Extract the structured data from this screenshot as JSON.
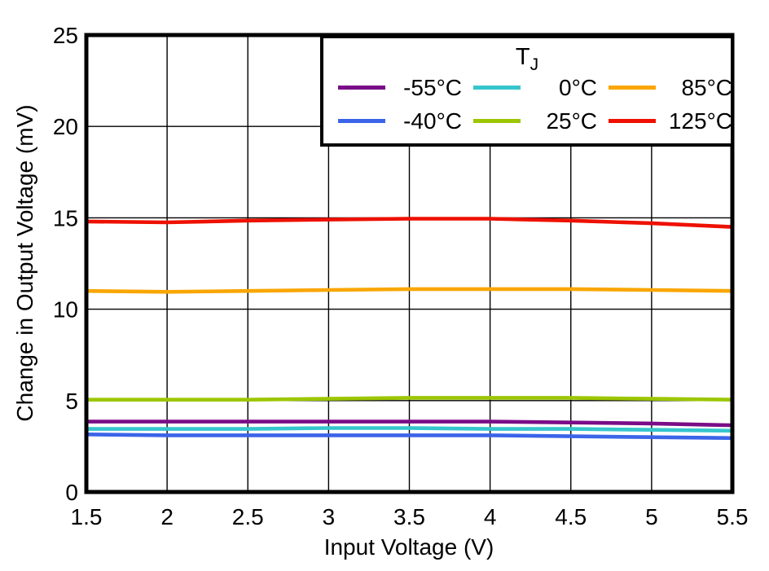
{
  "chart_data": {
    "type": "line",
    "xlabel": "Input Voltage (V)",
    "ylabel": "Change in Output Voltage (mV)",
    "xlim": [
      1.5,
      5.5
    ],
    "ylim": [
      0,
      25
    ],
    "xticks": [
      "1.5",
      "2",
      "2.5",
      "3",
      "3.5",
      "4",
      "4.5",
      "5",
      "5.5"
    ],
    "yticks": [
      "0",
      "5",
      "10",
      "15",
      "20",
      "25"
    ],
    "grid": true,
    "legend_title": "T",
    "legend_title_sub": "J",
    "legend_position": "top-right",
    "frame_color": "#000000",
    "background_color": "#ffffff",
    "x": [
      1.5,
      2,
      2.5,
      3,
      3.5,
      4,
      4.5,
      5,
      5.5
    ],
    "series": [
      {
        "name": "-55°C",
        "color": "#7A0C87",
        "values": [
          3.85,
          3.85,
          3.85,
          3.85,
          3.85,
          3.85,
          3.8,
          3.75,
          3.65
        ]
      },
      {
        "name": "-40°C",
        "color": "#3C64E9",
        "values": [
          3.15,
          3.1,
          3.1,
          3.1,
          3.1,
          3.1,
          3.05,
          3.0,
          2.95
        ]
      },
      {
        "name": "0°C",
        "color": "#36C5CD",
        "values": [
          3.45,
          3.45,
          3.45,
          3.5,
          3.5,
          3.45,
          3.45,
          3.4,
          3.35
        ]
      },
      {
        "name": "25°C",
        "color": "#9CC602",
        "values": [
          5.05,
          5.05,
          5.05,
          5.1,
          5.15,
          5.15,
          5.15,
          5.1,
          5.05
        ]
      },
      {
        "name": "85°C",
        "color": "#F9A603",
        "values": [
          11.0,
          10.95,
          11.0,
          11.05,
          11.1,
          11.1,
          11.1,
          11.05,
          11.0
        ]
      },
      {
        "name": "125°C",
        "color": "#EE1000",
        "values": [
          14.8,
          14.75,
          14.85,
          14.9,
          14.95,
          14.95,
          14.85,
          14.7,
          14.5
        ]
      }
    ]
  }
}
